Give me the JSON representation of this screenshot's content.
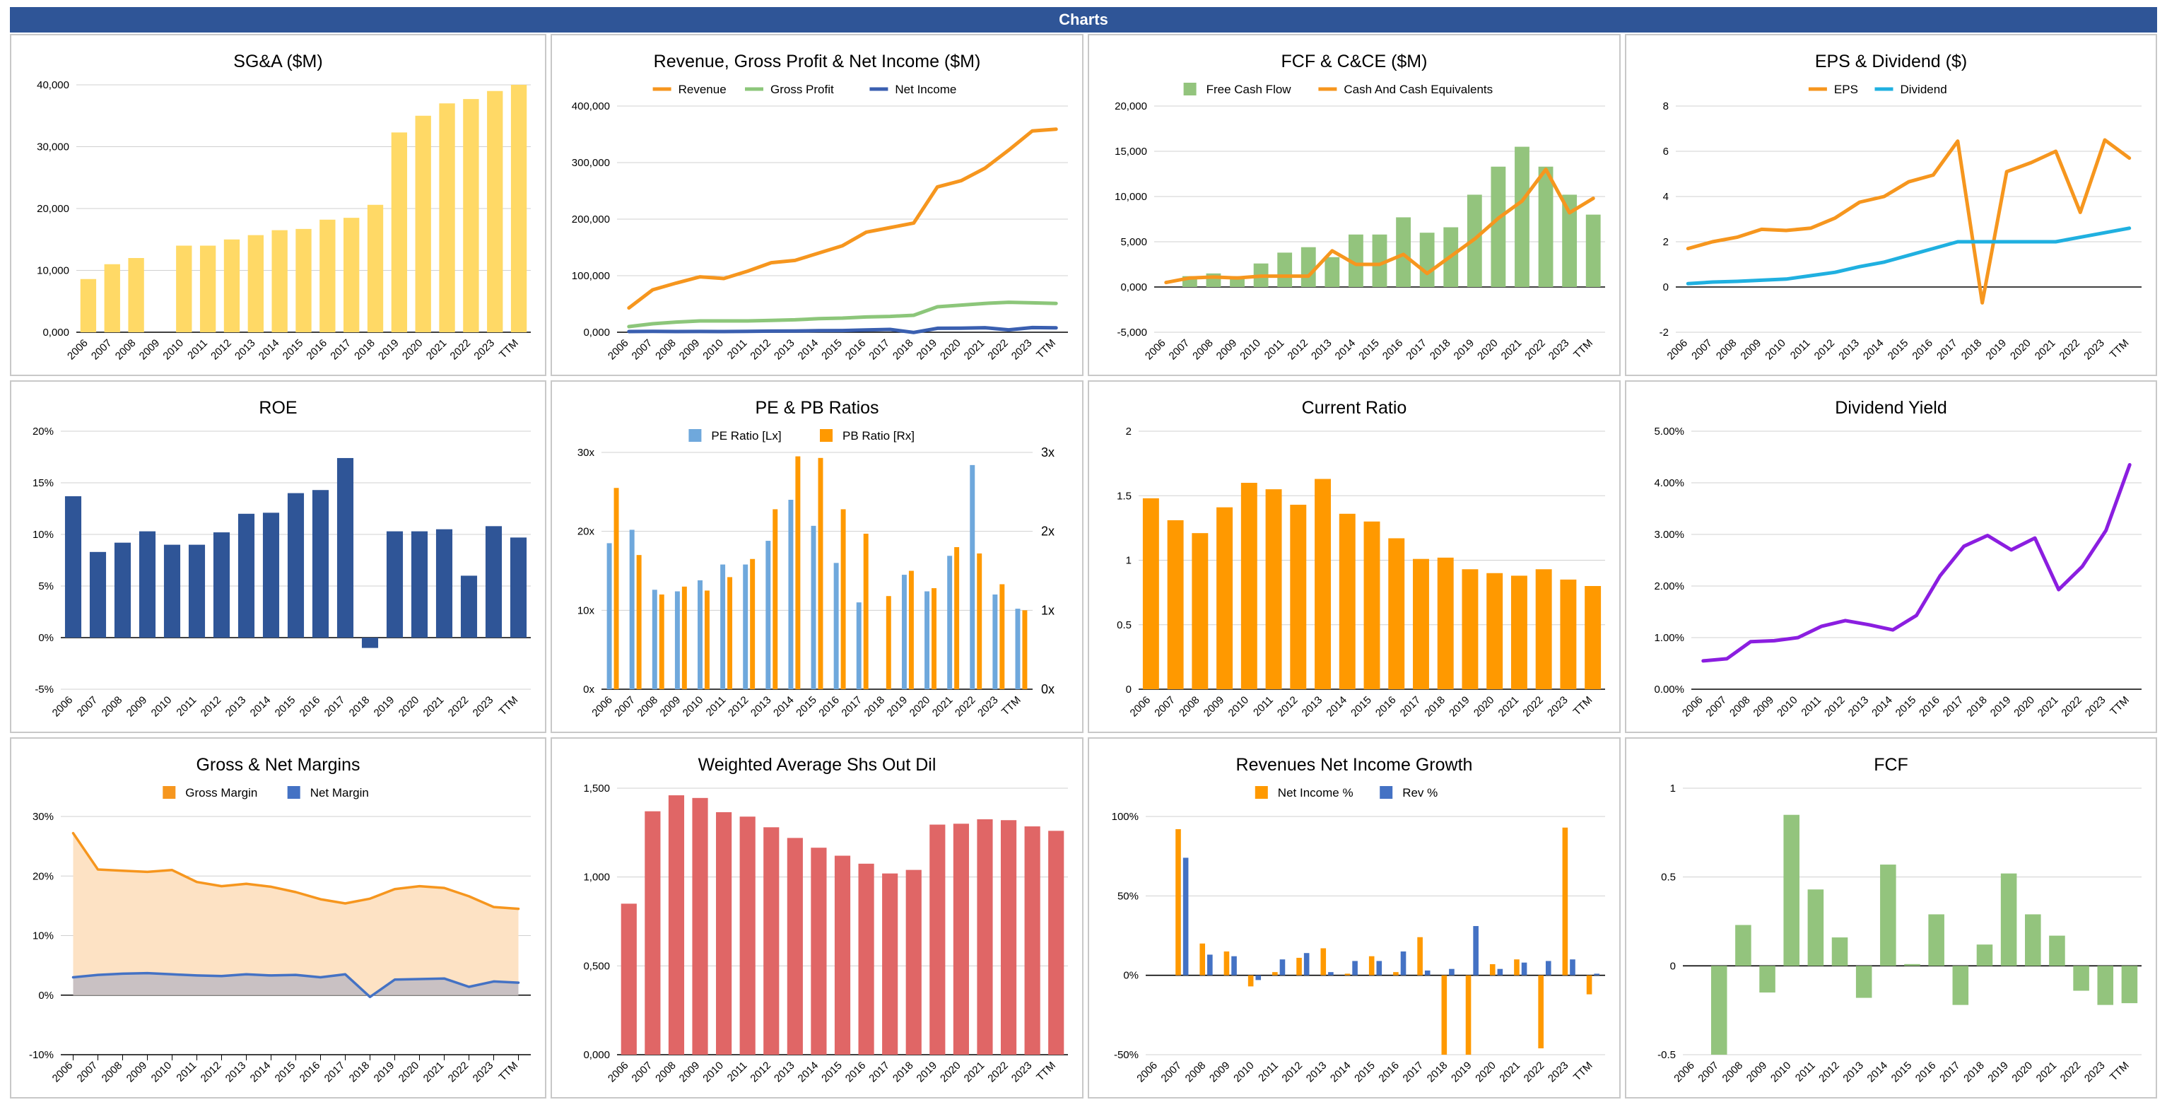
{
  "header": {
    "title": "Charts",
    "bg": "#2f5597"
  },
  "chart_data": [
    {
      "id": "sga",
      "type": "bar",
      "title": "SG&A ($M)",
      "categories": [
        "2006",
        "2007",
        "2008",
        "2009",
        "2010",
        "2011",
        "2012",
        "2013",
        "2014",
        "2015",
        "2016",
        "2017",
        "2018",
        "2019",
        "2020",
        "2021",
        "2022",
        "2023",
        "TTM"
      ],
      "series": [
        {
          "name": "SG&A",
          "color": "#ffd966",
          "values": [
            8600,
            11000,
            12000,
            null,
            14000,
            14000,
            15000,
            15700,
            16500,
            16700,
            18200,
            18500,
            20600,
            32300,
            35000,
            37000,
            37700,
            39000,
            40000
          ]
        }
      ],
      "ylim": [
        0,
        40000
      ],
      "yticks": [
        0,
        10000,
        20000,
        30000,
        40000
      ],
      "ytick_labels": [
        "0,000",
        "10,000",
        "20,000",
        "30,000",
        "40,000"
      ],
      "legend": "none"
    },
    {
      "id": "revenue",
      "type": "line",
      "title": "Revenue, Gross Profit & Net Income ($M)",
      "categories": [
        "2006",
        "2007",
        "2008",
        "2009",
        "2010",
        "2011",
        "2012",
        "2013",
        "2014",
        "2015",
        "2016",
        "2017",
        "2018",
        "2019",
        "2020",
        "2021",
        "2022",
        "2023",
        "TTM"
      ],
      "series": [
        {
          "name": "Revenue",
          "color": "#f6961e",
          "values": [
            43000,
            75000,
            87000,
            98000,
            95000,
            108000,
            123000,
            127000,
            140000,
            153000,
            177000,
            185000,
            193000,
            257000,
            268000,
            290000,
            322000,
            356000,
            359000
          ]
        },
        {
          "name": "Gross Profit",
          "color": "#8cc67a",
          "values": [
            10000,
            15000,
            18000,
            20000,
            20000,
            20000,
            21000,
            22000,
            24000,
            25000,
            27000,
            28000,
            30000,
            45000,
            48000,
            51000,
            53000,
            52000,
            51000
          ]
        },
        {
          "name": "Net Income",
          "color": "#3a5fb0",
          "values": [
            1200,
            1500,
            1300,
            1400,
            1300,
            1600,
            2000,
            2300,
            2700,
            3000,
            4000,
            5000,
            -400,
            7000,
            7200,
            8000,
            4300,
            8300,
            7800
          ]
        }
      ],
      "ylim": [
        0,
        400000
      ],
      "yticks": [
        0,
        100000,
        200000,
        300000,
        400000
      ],
      "ytick_labels": [
        "0,000",
        "100,000",
        "200,000",
        "300,000",
        "400,000"
      ],
      "legend": "top"
    },
    {
      "id": "fcf_cce",
      "type": "bar+line",
      "title": "FCF & C&CE ($M)",
      "categories": [
        "2006",
        "2007",
        "2008",
        "2009",
        "2010",
        "2011",
        "2012",
        "2013",
        "2014",
        "2015",
        "2016",
        "2017",
        "2018",
        "2019",
        "2020",
        "2021",
        "2022",
        "2023",
        "TTM"
      ],
      "series": [
        {
          "name": "Free Cash Flow",
          "kind": "bar",
          "color": "#93c47d",
          "values": [
            null,
            1200,
            1500,
            1200,
            2600,
            3800,
            4400,
            3300,
            5800,
            5800,
            7700,
            6000,
            6600,
            10200,
            13300,
            15500,
            13300,
            10200,
            8000
          ]
        },
        {
          "name": "Cash And Cash Equivalents",
          "kind": "line",
          "color": "#f6961e",
          "values": [
            500,
            1000,
            1100,
            1000,
            1200,
            1200,
            1200,
            4000,
            2500,
            2500,
            3600,
            1500,
            3400,
            5300,
            7600,
            9500,
            13000,
            8200,
            9800
          ]
        }
      ],
      "ylim": [
        -5000,
        20000
      ],
      "yticks": [
        -5000,
        0,
        5000,
        10000,
        15000,
        20000
      ],
      "ytick_labels": [
        "-5,000",
        "0,000",
        "5,000",
        "10,000",
        "15,000",
        "20,000"
      ],
      "legend": "top"
    },
    {
      "id": "eps_div",
      "type": "line",
      "title": "EPS & Dividend ($)",
      "categories": [
        "2006",
        "2007",
        "2008",
        "2009",
        "2010",
        "2011",
        "2012",
        "2013",
        "2014",
        "2015",
        "2016",
        "2017",
        "2018",
        "2019",
        "2020",
        "2021",
        "2022",
        "2023",
        "TTM"
      ],
      "series": [
        {
          "name": "EPS",
          "color": "#f6961e",
          "values": [
            1.7,
            2.0,
            2.2,
            2.55,
            2.5,
            2.6,
            3.05,
            3.75,
            4.0,
            4.65,
            4.95,
            6.45,
            -0.7,
            5.1,
            5.5,
            6.0,
            3.3,
            6.5,
            5.7
          ]
        },
        {
          "name": "Dividend",
          "color": "#20b0e0",
          "values": [
            0.15,
            0.22,
            0.25,
            0.3,
            0.35,
            0.5,
            0.65,
            0.9,
            1.1,
            1.4,
            1.7,
            2.0,
            2.0,
            2.0,
            2.0,
            2.0,
            2.2,
            2.4,
            2.6
          ]
        }
      ],
      "ylim": [
        -2,
        8
      ],
      "yticks": [
        -2,
        0,
        2,
        4,
        6,
        8
      ],
      "ytick_labels": [
        "-2",
        "0",
        "2",
        "4",
        "6",
        "8"
      ],
      "legend": "top"
    },
    {
      "id": "roe",
      "type": "bar",
      "title": "ROE",
      "categories": [
        "2006",
        "2007",
        "2008",
        "2009",
        "2010",
        "2011",
        "2012",
        "2013",
        "2014",
        "2015",
        "2016",
        "2017",
        "2018",
        "2019",
        "2020",
        "2021",
        "2022",
        "2023",
        "TTM"
      ],
      "series": [
        {
          "name": "ROE",
          "color": "#2f5597",
          "values": [
            0.137,
            0.083,
            0.092,
            0.103,
            0.09,
            0.09,
            0.102,
            0.12,
            0.121,
            0.14,
            0.143,
            0.174,
            -0.01,
            0.103,
            0.103,
            0.105,
            0.06,
            0.108,
            0.097
          ]
        }
      ],
      "ylim": [
        -0.05,
        0.2
      ],
      "yticks": [
        -0.05,
        0,
        0.05,
        0.1,
        0.15,
        0.2
      ],
      "ytick_labels": [
        "-5%",
        "0%",
        "5%",
        "10%",
        "15%",
        "20%"
      ],
      "legend": "none"
    },
    {
      "id": "pe_pb",
      "type": "bar",
      "title": "PE & PB Ratios",
      "categories": [
        "2006",
        "2007",
        "2008",
        "2009",
        "2010",
        "2011",
        "2012",
        "2013",
        "2014",
        "2015",
        "2016",
        "2017",
        "2018",
        "2019",
        "2020",
        "2021",
        "2022",
        "2023",
        "TTM"
      ],
      "series": [
        {
          "name": "PE Ratio [Lx]",
          "axis": "left",
          "color": "#6fa8dc",
          "values": [
            18.5,
            20.2,
            12.6,
            12.4,
            13.8,
            15.8,
            15.8,
            18.8,
            24,
            20.7,
            16,
            11,
            null,
            14.5,
            12.4,
            16.9,
            28.4,
            12,
            10.2
          ]
        },
        {
          "name": "PB Ratio [Rx]",
          "axis": "right",
          "color": "#ff9900",
          "values": [
            2.55,
            1.7,
            1.2,
            1.3,
            1.25,
            1.42,
            1.65,
            2.28,
            2.95,
            2.93,
            2.28,
            1.97,
            1.18,
            1.5,
            1.28,
            1.8,
            1.72,
            1.33,
            1.0
          ]
        }
      ],
      "ylim": [
        0,
        30
      ],
      "yticks": [
        0,
        10,
        20,
        30
      ],
      "ytick_labels": [
        "0x",
        "10x",
        "20x",
        "30x"
      ],
      "y2lim": [
        0,
        3
      ],
      "y2ticks": [
        0,
        1,
        2,
        3
      ],
      "y2tick_labels": [
        "0x",
        "1x",
        "2x",
        "3x"
      ],
      "legend": "top"
    },
    {
      "id": "current_ratio",
      "type": "bar",
      "title": "Current Ratio",
      "categories": [
        "2006",
        "2007",
        "2008",
        "2009",
        "2010",
        "2011",
        "2012",
        "2013",
        "2014",
        "2015",
        "2016",
        "2017",
        "2018",
        "2019",
        "2020",
        "2021",
        "2022",
        "2023",
        "TTM"
      ],
      "series": [
        {
          "name": "Current Ratio",
          "color": "#ff9900",
          "values": [
            1.48,
            1.31,
            1.21,
            1.41,
            1.6,
            1.55,
            1.43,
            1.63,
            1.36,
            1.3,
            1.17,
            1.01,
            1.02,
            0.93,
            0.9,
            0.88,
            0.93,
            0.85,
            0.8
          ]
        }
      ],
      "ylim": [
        0,
        2
      ],
      "yticks": [
        0,
        0.5,
        1,
        1.5,
        2
      ],
      "ytick_labels": [
        "0",
        "0.5",
        "1",
        "1.5",
        "2"
      ],
      "legend": "none"
    },
    {
      "id": "div_yield",
      "type": "line",
      "title": "Dividend Yield",
      "categories": [
        "2006",
        "2007",
        "2008",
        "2009",
        "2010",
        "2011",
        "2012",
        "2013",
        "2014",
        "2015",
        "2016",
        "2017",
        "2018",
        "2019",
        "2020",
        "2021",
        "2022",
        "2023",
        "TTM"
      ],
      "series": [
        {
          "name": "Dividend Yield",
          "color": "#8b1ee0",
          "values": [
            0.0055,
            0.0059,
            0.0092,
            0.0094,
            0.01,
            0.0122,
            0.0133,
            0.0125,
            0.0115,
            0.0143,
            0.022,
            0.0277,
            0.0298,
            0.027,
            0.0293,
            0.0193,
            0.0238,
            0.0308,
            0.0435
          ]
        }
      ],
      "ylim": [
        0,
        0.05
      ],
      "yticks": [
        0,
        0.01,
        0.02,
        0.03,
        0.04,
        0.05
      ],
      "ytick_labels": [
        "0.00%",
        "1.00%",
        "2.00%",
        "3.00%",
        "4.00%",
        "5.00%"
      ],
      "legend": "none"
    },
    {
      "id": "margins",
      "type": "area",
      "title": "Gross & Net Margins",
      "categories": [
        "2006",
        "2007",
        "2008",
        "2009",
        "2010",
        "2011",
        "2012",
        "2013",
        "2014",
        "2015",
        "2016",
        "2017",
        "2018",
        "2019",
        "2020",
        "2021",
        "2022",
        "2023",
        "TTM"
      ],
      "series": [
        {
          "name": "Gross Margin",
          "color": "#f6961e",
          "fill": "#fde2c4",
          "values": [
            0.272,
            0.211,
            0.209,
            0.207,
            0.21,
            0.19,
            0.183,
            0.187,
            0.182,
            0.173,
            0.161,
            0.154,
            0.162,
            0.178,
            0.183,
            0.18,
            0.166,
            0.148,
            0.145
          ]
        },
        {
          "name": "Net Margin",
          "color": "#4472c4",
          "fill": "#c9c1c3",
          "values": [
            0.03,
            0.034,
            0.036,
            0.037,
            0.035,
            0.033,
            0.032,
            0.035,
            0.033,
            0.034,
            0.03,
            0.035,
            -0.003,
            0.026,
            0.027,
            0.028,
            0.014,
            0.023,
            0.021
          ]
        }
      ],
      "ylim": [
        -0.1,
        0.3
      ],
      "yticks": [
        -0.1,
        0,
        0.1,
        0.2,
        0.3
      ],
      "ytick_labels": [
        "-10%",
        "0%",
        "10%",
        "20%",
        "30%"
      ],
      "legend": "top"
    },
    {
      "id": "shares",
      "type": "bar",
      "title": "Weighted Average Shs Out Dil",
      "categories": [
        "2006",
        "2007",
        "2008",
        "2009",
        "2010",
        "2011",
        "2012",
        "2013",
        "2014",
        "2015",
        "2016",
        "2017",
        "2018",
        "2019",
        "2020",
        "2021",
        "2022",
        "2023",
        "TTM"
      ],
      "series": [
        {
          "name": "Shares",
          "color": "#e06666",
          "values": [
            850,
            1370,
            1460,
            1445,
            1365,
            1340,
            1280,
            1220,
            1165,
            1120,
            1075,
            1020,
            1040,
            1295,
            1300,
            1325,
            1320,
            1285,
            1260
          ]
        }
      ],
      "ylim": [
        0,
        1500
      ],
      "yticks": [
        0,
        500,
        1000,
        1500
      ],
      "ytick_labels": [
        "0,000",
        "0,500",
        "1,000",
        "1,500"
      ],
      "legend": "none"
    },
    {
      "id": "growth",
      "type": "bar",
      "title": "Revenues Net Income Growth",
      "categories": [
        "2006",
        "2007",
        "2008",
        "2009",
        "2010",
        "2011",
        "2012",
        "2013",
        "2014",
        "2015",
        "2016",
        "2017",
        "2018",
        "2019",
        "2020",
        "2021",
        "2022",
        "2023",
        "TTM"
      ],
      "series": [
        {
          "name": "Net Income %",
          "color": "#ff9900",
          "values": [
            null,
            0.92,
            0.2,
            0.15,
            -0.07,
            0.02,
            0.11,
            0.17,
            0.01,
            0.12,
            0.02,
            0.24,
            -0.55,
            -0.55,
            0.07,
            0.1,
            -0.46,
            0.93,
            -0.12
          ]
        },
        {
          "name": "Rev %",
          "color": "#4472c4",
          "values": [
            null,
            0.74,
            0.13,
            0.12,
            -0.03,
            0.1,
            0.14,
            0.02,
            0.09,
            0.09,
            0.15,
            0.03,
            0.04,
            0.31,
            0.04,
            0.08,
            0.09,
            0.1,
            0.01
          ]
        }
      ],
      "ylim": [
        -0.5,
        1.0
      ],
      "yticks": [
        -0.5,
        0,
        0.5,
        1.0
      ],
      "ytick_labels": [
        "-50%",
        "0%",
        "50%",
        "100%"
      ],
      "legend": "top"
    },
    {
      "id": "fcf",
      "type": "bar",
      "title": "FCF",
      "categories": [
        "2006",
        "2007",
        "2008",
        "2009",
        "2010",
        "2011",
        "2012",
        "2013",
        "2014",
        "2015",
        "2016",
        "2017",
        "2018",
        "2019",
        "2020",
        "2021",
        "2022",
        "2023",
        "TTM"
      ],
      "series": [
        {
          "name": "FCF",
          "color": "#93c47d",
          "values": [
            null,
            -0.5,
            0.23,
            -0.15,
            0.85,
            0.43,
            0.16,
            -0.18,
            0.57,
            0.01,
            0.29,
            -0.22,
            0.12,
            0.52,
            0.29,
            0.17,
            -0.14,
            -0.22,
            -0.21
          ]
        }
      ],
      "ylim": [
        -0.5,
        1.0
      ],
      "yticks": [
        -0.5,
        0,
        0.5,
        1.0
      ],
      "ytick_labels": [
        "-0.5",
        "0",
        "0.5",
        "1"
      ],
      "legend": "none"
    }
  ]
}
